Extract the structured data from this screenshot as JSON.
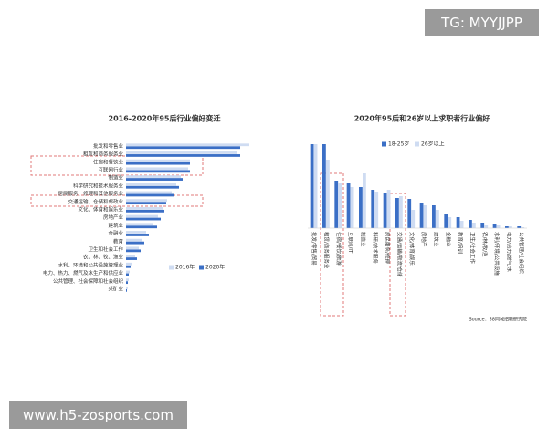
{
  "watermark": "TG: MYYJJPP",
  "footer_url": "www.h5-zosports.com",
  "chart_data": [
    {
      "type": "bar",
      "orientation": "horizontal",
      "title": "2016-2020年95后行业偏好变迁",
      "categories": [
        "批发和零售业",
        "租赁和商务服务业",
        "住宿和餐饮业",
        "互联网行业",
        "制造业",
        "科学研究和技术服务业",
        "居民服务、修理和其他服务业",
        "交通运输、仓储和邮政业",
        "文化、体育和娱乐业",
        "房地产业",
        "建筑业",
        "金融业",
        "教育",
        "卫生和社会工作",
        "农、林、牧、渔业",
        "水利、环境和公共设施管理业",
        "电力、热力、燃气及水生产和供应业",
        "公共管理、社会保障和社会组织",
        "采矿业"
      ],
      "series": [
        {
          "name": "2016年",
          "color": "#cfdcf2",
          "values": [
            135,
            122,
            70,
            68,
            60,
            55,
            50,
            45,
            40,
            35,
            30,
            22,
            18,
            14,
            10,
            6,
            4,
            3,
            2
          ]
        },
        {
          "name": "2020年",
          "color": "#3b6fc6",
          "values": [
            125,
            125,
            70,
            70,
            62,
            58,
            52,
            44,
            42,
            38,
            34,
            25,
            20,
            16,
            12,
            5,
            3,
            2,
            1
          ]
        }
      ]
    },
    {
      "type": "bar",
      "orientation": "vertical",
      "title": "2020年95后和26岁以上求职者行业偏好",
      "categories": [
        "批发/零售/贸易",
        "租赁/商务服务业",
        "住宿/餐饮/旅游",
        "互联网/IT",
        "制造业",
        "科研/技术服务",
        "居民服务/修理",
        "交通/运输/物流/仓储",
        "文化/体育/娱乐",
        "房地产",
        "建筑业",
        "金融业",
        "教育/培训",
        "卫生/社会工作",
        "农/林/牧/渔",
        "水利/环境/公共设施",
        "电力/热力/燃气/水",
        "公共管理/社会组织"
      ],
      "series": [
        {
          "name": "18-25岁",
          "color": "#3b6fc6",
          "values": [
            92,
            92,
            52,
            50,
            45,
            42,
            38,
            33,
            32,
            28,
            25,
            15,
            12,
            9,
            6,
            4,
            2,
            2
          ]
        },
        {
          "name": "26岁以上",
          "color": "#cfdcf2",
          "values": [
            92,
            75,
            50,
            45,
            60,
            40,
            42,
            35,
            20,
            25,
            20,
            12,
            8,
            6,
            3,
            3,
            2,
            1
          ]
        }
      ],
      "source": "Source：58同城招聘研究院"
    }
  ]
}
